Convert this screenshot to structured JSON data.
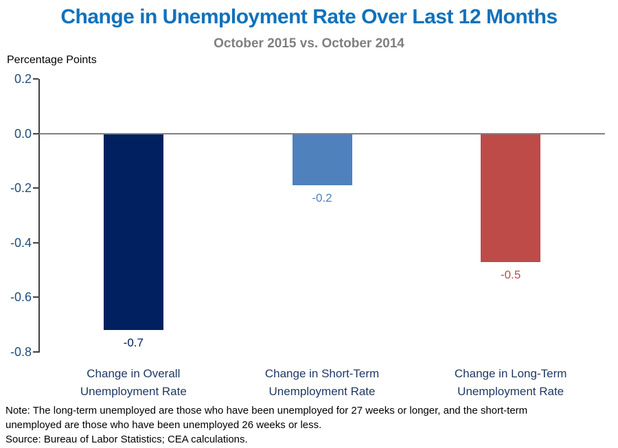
{
  "page": {
    "title": "Change in Unemployment Rate Over Last 12 Months",
    "subtitle": "October 2015 vs. October 2014",
    "units_label": "Percentage Points",
    "note": "Note: The long-term unemployed  are those who have been unemployed  for 27 weeks  or longer, and the short-term\nunemployed  are those who have been unemployed  26 weeks  or less.",
    "source": "Source: Bureau of Labor Statistics; CEA calculations."
  },
  "chart_data": {
    "type": "bar",
    "title": "Change in Unemployment Rate Over Last 12 Months",
    "subtitle": "October 2015 vs. October 2014",
    "ylabel": "Percentage Points",
    "categories": [
      "Change in Overall\nUnemployment Rate",
      "Change in Short-Term\nUnemployment Rate",
      "Change in Long-Term\nUnemployment Rate"
    ],
    "values": [
      -0.72,
      -0.19,
      -0.47
    ],
    "value_labels": [
      "-0.7",
      "-0.2",
      "-0.5"
    ],
    "bar_colors": [
      "#002060",
      "#4F81BD",
      "#BE4B48"
    ],
    "ylim": [
      -0.8,
      0.2
    ],
    "yticks": [
      0.2,
      0,
      -0.2,
      -0.4,
      -0.6,
      -0.8
    ],
    "ytick_labels": [
      "0.2",
      "0.0",
      "-0.2",
      "-0.4",
      "-0.6",
      "-0.8"
    ],
    "grid": false,
    "zero_line": true,
    "legend": false,
    "colors": {
      "title": "#1072BC",
      "subtitle": "#7F7F7F",
      "tick_labels": "#1F4E79",
      "category_labels": "#1F3864",
      "axis_line": "#404040",
      "zero_line": "#808080"
    }
  }
}
